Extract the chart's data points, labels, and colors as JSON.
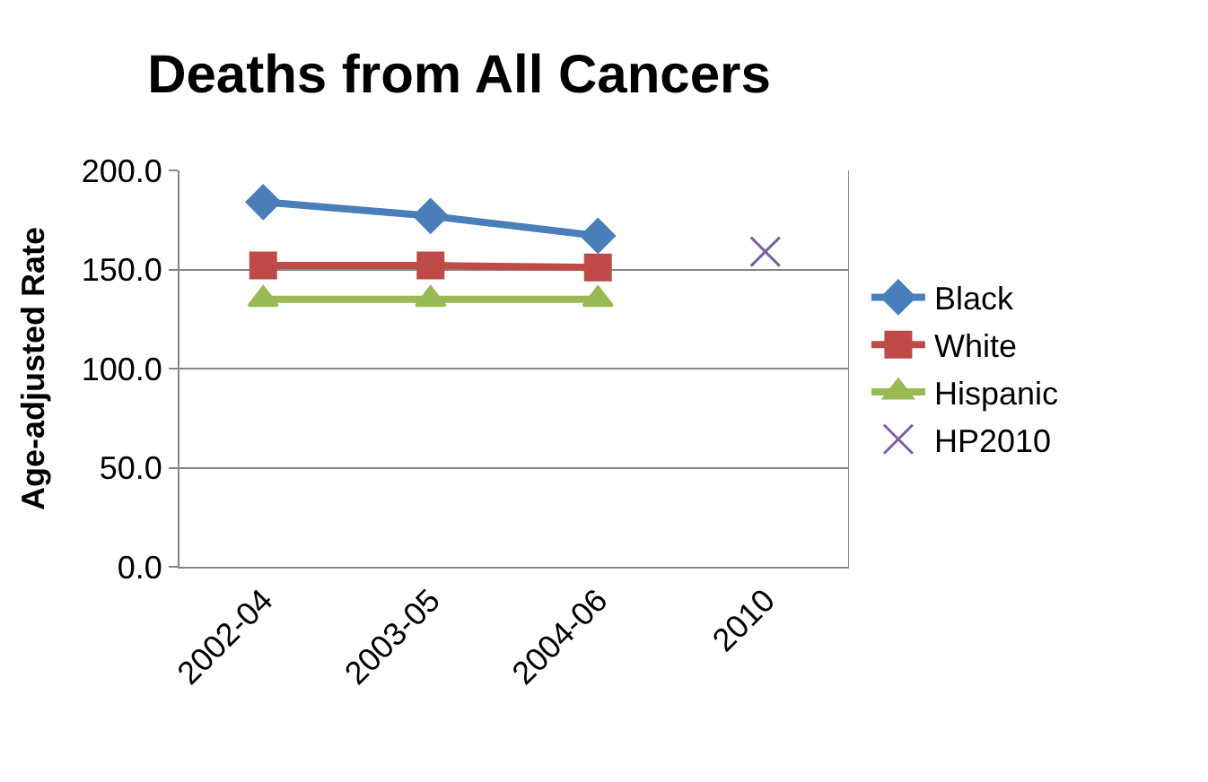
{
  "chart_data": {
    "type": "line",
    "title": "Deaths from All Cancers",
    "ylabel": "Age-adjusted Rate",
    "categories": [
      "2002-04",
      "2003-05",
      "2004-06",
      "2010"
    ],
    "series": [
      {
        "name": "Black",
        "color": "#4a7ebb",
        "marker": "diamond",
        "values": [
          184,
          177,
          167,
          null
        ]
      },
      {
        "name": "White",
        "color": "#be4b48",
        "marker": "square",
        "values": [
          152,
          152,
          151,
          null
        ]
      },
      {
        "name": "Hispanic",
        "color": "#98b954",
        "marker": "triangle",
        "values": [
          135,
          135,
          135,
          null
        ]
      },
      {
        "name": "HP2010",
        "color": "#7d60a0",
        "marker": "cross",
        "line_style": "none",
        "values": [
          null,
          null,
          null,
          159
        ]
      }
    ],
    "ylim": [
      0,
      200
    ],
    "yticks": [
      {
        "value": 0,
        "label": "0.0"
      },
      {
        "value": 50,
        "label": "50.0"
      },
      {
        "value": 100,
        "label": "100.0"
      },
      {
        "value": 150,
        "label": "150.0"
      },
      {
        "value": 200,
        "label": "200.0"
      }
    ],
    "grid": "y",
    "legend": "right"
  }
}
